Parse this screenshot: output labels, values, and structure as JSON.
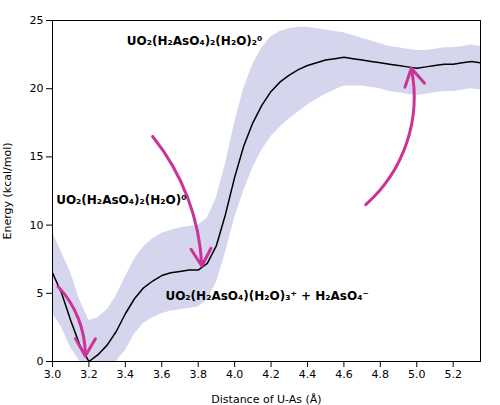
{
  "chart_data": {
    "type": "line",
    "xlabel": "Distance of U-As (Å)",
    "ylabel": "Energy (kcal/mol)",
    "xlim": [
      3.0,
      5.35
    ],
    "ylim": [
      0,
      25
    ],
    "xticks": [
      {
        "value": 3.0,
        "label": "3.0"
      },
      {
        "value": 3.2,
        "label": "3.2"
      },
      {
        "value": 3.4,
        "label": "3.4"
      },
      {
        "value": 3.6,
        "label": "3.6"
      },
      {
        "value": 3.8,
        "label": "3.8"
      },
      {
        "value": 4.0,
        "label": "4.0"
      },
      {
        "value": 4.2,
        "label": "4.2"
      },
      {
        "value": 4.4,
        "label": "4.4"
      },
      {
        "value": 4.6,
        "label": "4.6"
      },
      {
        "value": 4.8,
        "label": "4.8"
      },
      {
        "value": 5.0,
        "label": "5.0"
      },
      {
        "value": 5.2,
        "label": "5.2"
      }
    ],
    "yticks": [
      0,
      5,
      10,
      15,
      20,
      25
    ],
    "grid": false,
    "x": [
      3.0,
      3.05,
      3.1,
      3.15,
      3.2,
      3.25,
      3.3,
      3.35,
      3.4,
      3.45,
      3.5,
      3.55,
      3.6,
      3.65,
      3.7,
      3.75,
      3.8,
      3.85,
      3.9,
      3.95,
      4.0,
      4.05,
      4.1,
      4.15,
      4.2,
      4.25,
      4.3,
      4.35,
      4.4,
      4.45,
      4.5,
      4.55,
      4.6,
      4.65,
      4.7,
      4.75,
      4.8,
      4.85,
      4.9,
      4.95,
      5.0,
      5.05,
      5.1,
      5.15,
      5.2,
      5.25,
      5.3,
      5.35
    ],
    "values": [
      6.5,
      5.0,
      3.0,
      1.2,
      0.0,
      0.5,
      1.2,
      2.2,
      3.5,
      4.6,
      5.4,
      5.9,
      6.3,
      6.5,
      6.6,
      6.7,
      6.7,
      7.2,
      8.5,
      10.8,
      13.5,
      15.8,
      17.5,
      18.8,
      19.8,
      20.5,
      21.0,
      21.4,
      21.7,
      21.9,
      22.1,
      22.2,
      22.3,
      22.2,
      22.1,
      22.0,
      21.9,
      21.8,
      21.7,
      21.6,
      21.5,
      21.6,
      21.7,
      21.8,
      21.8,
      21.9,
      22.0,
      21.9
    ],
    "color": "#000000",
    "band": {
      "upper": [
        9.5,
        8.0,
        6.5,
        4.5,
        3.0,
        3.2,
        3.8,
        4.8,
        6.2,
        7.5,
        8.4,
        9.0,
        9.4,
        9.6,
        9.8,
        9.9,
        10.0,
        10.5,
        12.0,
        14.5,
        17.5,
        20.0,
        21.8,
        23.0,
        23.8,
        24.2,
        24.4,
        24.5,
        24.5,
        24.4,
        24.3,
        24.2,
        24.1,
        23.9,
        23.7,
        23.5,
        23.3,
        23.1,
        23.0,
        22.9,
        22.8,
        22.8,
        22.9,
        23.0,
        23.0,
        23.1,
        23.2,
        23.1
      ],
      "lower": [
        3.5,
        2.5,
        1.0,
        0.0,
        0.0,
        0.0,
        0.0,
        0.0,
        0.8,
        2.0,
        2.8,
        3.2,
        3.5,
        3.7,
        3.8,
        3.9,
        4.0,
        4.5,
        5.8,
        8.0,
        10.5,
        12.5,
        14.2,
        15.5,
        16.5,
        17.2,
        17.8,
        18.3,
        18.8,
        19.2,
        19.6,
        19.9,
        20.2,
        20.2,
        20.2,
        20.1,
        20.0,
        19.8,
        19.7,
        19.6,
        19.5,
        19.6,
        19.7,
        19.8,
        19.8,
        19.9,
        20.0,
        19.9
      ],
      "color": "#8888cc"
    },
    "arrows": [
      {
        "from": [
          3.03,
          5.5
        ],
        "to": [
          3.18,
          0.4
        ],
        "color": "#cc3399"
      },
      {
        "from": [
          3.55,
          16.5
        ],
        "to": [
          3.82,
          7.0
        ],
        "color": "#cc3399"
      },
      {
        "from": [
          4.72,
          11.5
        ],
        "to": [
          4.97,
          21.5
        ],
        "color": "#cc3399"
      }
    ],
    "annotations": [
      {
        "text": "UO₂(H₂AsO₄)₂(H₂O)₂⁰",
        "x": 3.78,
        "y": 23.5
      },
      {
        "text": "UO₂(H₂AsO₄)₂(H₂O)⁰",
        "x": 3.02,
        "y": 11.8
      },
      {
        "text": "UO₂(H₂AsO₄)(H₂O)₃⁺ + H₂AsO₄⁻",
        "x": 3.62,
        "y": 4.8
      }
    ]
  }
}
